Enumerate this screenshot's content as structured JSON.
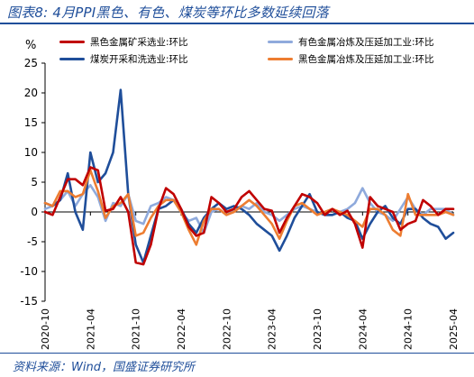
{
  "header": {
    "title": "图表8: 4月PPI黑色、有色、煤炭等环比多数延续回落"
  },
  "footer": {
    "source": "资料来源：Wind，国盛证券研究所"
  },
  "colors": {
    "accent": "#1f4e9a"
  },
  "chart_data": {
    "type": "line",
    "title": "图表8: 4月PPI黑色、有色、煤炭等环比多数延续回落",
    "ylabel": "%",
    "ylim": [
      -15,
      25
    ],
    "yticks": [
      25,
      20,
      15,
      10,
      5,
      0,
      -5,
      -10,
      -15
    ],
    "grid": false,
    "legend_position": "top",
    "x": [
      "2020-10",
      "2020-11",
      "2020-12",
      "2021-01",
      "2021-02",
      "2021-03",
      "2021-04",
      "2021-05",
      "2021-06",
      "2021-07",
      "2021-08",
      "2021-09",
      "2021-10",
      "2021-11",
      "2021-12",
      "2022-01",
      "2022-02",
      "2022-03",
      "2022-04",
      "2022-05",
      "2022-06",
      "2022-07",
      "2022-08",
      "2022-09",
      "2022-10",
      "2022-11",
      "2022-12",
      "2023-01",
      "2023-02",
      "2023-03",
      "2023-04",
      "2023-05",
      "2023-06",
      "2023-07",
      "2023-08",
      "2023-09",
      "2023-10",
      "2023-11",
      "2023-12",
      "2024-01",
      "2024-02",
      "2024-03",
      "2024-04",
      "2024-05",
      "2024-06",
      "2024-07",
      "2024-08",
      "2024-09",
      "2024-10",
      "2024-11",
      "2024-12",
      "2025-01",
      "2025-02",
      "2025-03",
      "2025-04"
    ],
    "xticks": [
      "2020-10",
      "2021-04",
      "2021-10",
      "2022-04",
      "2022-10",
      "2023-04",
      "2023-10",
      "2024-04",
      "2024-10",
      "2025-04"
    ],
    "series": [
      {
        "name": "黑色金属矿采选业:环比",
        "color": "#c00000",
        "values": [
          0.0,
          -0.5,
          2.5,
          5.5,
          5.5,
          4.5,
          7.5,
          7.0,
          0.2,
          0.5,
          2.5,
          0.0,
          -8.5,
          -8.8,
          -5.5,
          0.5,
          4.0,
          3.0,
          0.5,
          -2.5,
          -4.0,
          -3.5,
          2.5,
          1.5,
          0.0,
          0.5,
          2.5,
          3.5,
          2.0,
          0.5,
          0.2,
          -3.5,
          -1.0,
          1.0,
          3.0,
          2.5,
          1.5,
          -0.5,
          0.5,
          -0.5,
          0.2,
          -2.0,
          -6.0,
          2.5,
          1.0,
          0.5,
          0.0,
          -3.0,
          -2.0,
          -1.5,
          2.0,
          1.0,
          -0.5,
          0.5,
          0.5
        ]
      },
      {
        "name": "有色金属冶炼及压延加工业:环比",
        "color": "#8faadc",
        "values": [
          0.5,
          1.0,
          2.0,
          3.5,
          1.0,
          3.0,
          4.5,
          2.5,
          -1.5,
          1.5,
          1.0,
          3.0,
          -1.5,
          -2.0,
          1.0,
          1.5,
          2.5,
          2.0,
          0.0,
          -1.5,
          -1.0,
          -3.5,
          0.0,
          0.5,
          -0.5,
          0.5,
          1.0,
          0.5,
          1.5,
          0.0,
          -0.5,
          -1.5,
          -0.5,
          0.5,
          1.0,
          0.5,
          0.0,
          -0.5,
          -0.5,
          0.0,
          0.5,
          1.5,
          4.0,
          1.5,
          0.0,
          -0.5,
          -1.5,
          0.5,
          2.5,
          0.5,
          -0.5,
          0.5,
          0.5,
          0.5,
          -0.5
        ]
      },
      {
        "name": "煤炭开采和洗选业:环比",
        "color": "#1f4e9a",
        "values": [
          1.5,
          1.0,
          2.0,
          6.5,
          0.0,
          -3.0,
          10.0,
          5.0,
          6.5,
          10.0,
          20.5,
          3.0,
          -5.5,
          -8.5,
          -4.0,
          0.5,
          1.0,
          2.0,
          0.5,
          -2.0,
          -3.5,
          -1.0,
          0.5,
          1.5,
          0.5,
          1.0,
          0.5,
          -0.5,
          -2.0,
          -3.0,
          -4.0,
          -6.5,
          -4.0,
          -1.0,
          1.0,
          3.0,
          0.0,
          -0.5,
          -0.5,
          0.0,
          -1.0,
          -1.5,
          -4.5,
          -2.0,
          0.0,
          1.0,
          -1.0,
          -2.0,
          0.5,
          0.5,
          -1.0,
          -2.0,
          -2.5,
          -4.5,
          -3.5
        ]
      },
      {
        "name": "黑色金属冶炼及压延加工业:环比",
        "color": "#ed7d31",
        "values": [
          1.5,
          1.0,
          3.5,
          3.5,
          2.5,
          3.0,
          7.0,
          3.5,
          -1.0,
          1.0,
          1.5,
          3.0,
          -4.0,
          -3.5,
          -1.0,
          1.0,
          2.0,
          2.0,
          0.0,
          -3.0,
          -5.5,
          -1.5,
          0.5,
          0.5,
          -0.5,
          0.0,
          1.0,
          2.0,
          1.0,
          -0.5,
          -2.0,
          -4.5,
          -1.5,
          1.0,
          1.5,
          0.5,
          -0.5,
          0.0,
          0.5,
          0.0,
          -0.5,
          -1.5,
          -2.5,
          0.5,
          0.5,
          -0.5,
          -3.0,
          -4.0,
          3.0,
          -0.5,
          -0.5,
          -0.5,
          -0.5,
          0.0,
          -0.5
        ]
      }
    ]
  }
}
